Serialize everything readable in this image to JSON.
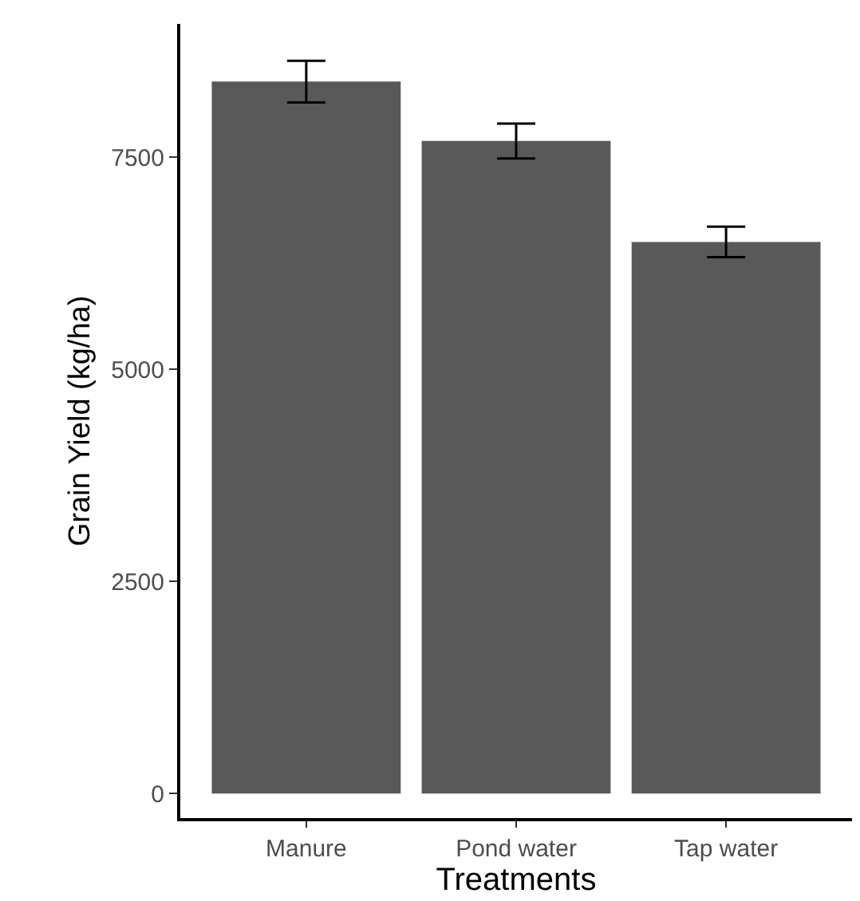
{
  "chart_data": {
    "type": "bar",
    "xlabel": "Treatments",
    "ylabel": "Grain Yield (kg/ha)",
    "categories": [
      "Manure",
      "Pond water",
      "Tap water"
    ],
    "values": [
      8390,
      7690,
      6500
    ],
    "errors": [
      245,
      205,
      180
    ],
    "color": "#595959",
    "ylim": [
      -290,
      9070
    ],
    "yticks": [
      0,
      2500,
      5000,
      7500
    ]
  }
}
